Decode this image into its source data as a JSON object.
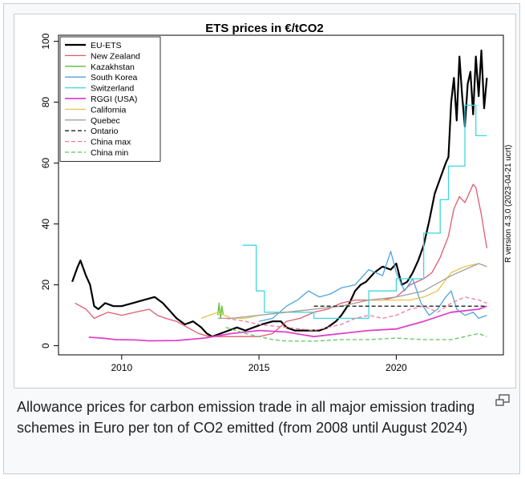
{
  "figure": {
    "caption": "Allowance prices for carbon emission trade in all major emission trading schemes in Euro per ton of CO2 emitted (from 2008 until August 2024)",
    "enlarge_icon": "magnify-clip-icon"
  },
  "chart_data": {
    "type": "line",
    "title": "ETS prices in €/tCO2",
    "side_note": "R version 4.3.0 (2023-04-21 ucrt)",
    "xlabel": "",
    "ylabel": "",
    "xlim": [
      2007.7,
      2023.9
    ],
    "ylim": [
      -3,
      102
    ],
    "xticks": [
      2010,
      2015,
      2020
    ],
    "yticks": [
      0,
      20,
      40,
      60,
      80,
      100
    ],
    "grid": false,
    "legend_position": "top-left",
    "series": [
      {
        "name": "EU-ETS",
        "color": "#000000",
        "dash": "solid",
        "width": 2.2,
        "x": [
          2008.2,
          2008.4,
          2008.5,
          2008.7,
          2008.85,
          2009.0,
          2009.15,
          2009.4,
          2009.7,
          2010.0,
          2010.4,
          2010.8,
          2011.2,
          2011.5,
          2011.8,
          2012.0,
          2012.3,
          2012.6,
          2012.9,
          2013.1,
          2013.3,
          2013.6,
          2013.9,
          2014.2,
          2014.5,
          2014.8,
          2015.1,
          2015.5,
          2015.8,
          2016.0,
          2016.3,
          2016.6,
          2016.9,
          2017.2,
          2017.5,
          2017.8,
          2018.0,
          2018.3,
          2018.5,
          2018.7,
          2018.9,
          2019.2,
          2019.5,
          2019.8,
          2020.0,
          2020.2,
          2020.4,
          2020.6,
          2020.8,
          2021.0,
          2021.2,
          2021.4,
          2021.6,
          2021.8,
          2021.9,
          2022.0,
          2022.1,
          2022.2,
          2022.3,
          2022.4,
          2022.5,
          2022.6,
          2022.7,
          2022.8,
          2022.9,
          2023.0,
          2023.1,
          2023.2,
          2023.3
        ],
        "y": [
          21,
          26,
          28,
          23,
          20,
          13,
          12,
          14,
          13,
          13,
          14,
          15,
          16,
          14,
          11,
          9,
          7,
          8,
          6,
          4,
          3,
          4,
          5,
          6,
          5,
          6,
          7,
          8,
          8,
          6,
          5,
          5,
          5,
          5,
          6,
          8,
          10,
          14,
          18,
          20,
          21,
          24,
          26,
          25,
          27,
          20,
          21,
          24,
          28,
          33,
          41,
          50,
          55,
          60,
          62,
          80,
          88,
          74,
          95,
          82,
          72,
          86,
          90,
          76,
          95,
          82,
          97,
          78,
          88
        ]
      },
      {
        "name": "New Zealand",
        "color": "#e05a6e",
        "dash": "solid",
        "width": 1.3,
        "x": [
          2008.3,
          2008.7,
          2009.0,
          2009.5,
          2010.0,
          2010.5,
          2011.0,
          2011.3,
          2011.6,
          2012.0,
          2012.4,
          2012.8,
          2013.2,
          2013.6,
          2014.0,
          2014.5,
          2015.0,
          2015.5,
          2016.0,
          2016.5,
          2017.0,
          2017.5,
          2018.0,
          2018.5,
          2019.0,
          2019.5,
          2020.0,
          2020.5,
          2021.0,
          2021.3,
          2021.6,
          2021.9,
          2022.1,
          2022.3,
          2022.5,
          2022.7,
          2022.8,
          2022.9,
          2023.1,
          2023.3
        ],
        "y": [
          14,
          12,
          9,
          11,
          10,
          11,
          12,
          10,
          9,
          8,
          6,
          4,
          3,
          3,
          3,
          3,
          3,
          4,
          8,
          9,
          11,
          12,
          14,
          15,
          15,
          15,
          16,
          20,
          22,
          24,
          29,
          36,
          45,
          49,
          47,
          51,
          53,
          52,
          43,
          32
        ]
      },
      {
        "name": "Kazakhstan",
        "color": "#6cc24a",
        "dash": "solid",
        "width": 1.5,
        "x": [
          2013.5,
          2013.55,
          2013.6,
          2013.65,
          2013.7
        ],
        "y": [
          10,
          14,
          9,
          13,
          10
        ]
      },
      {
        "name": "South Korea",
        "color": "#4fa3e0",
        "dash": "solid",
        "width": 1.3,
        "x": [
          2015.0,
          2015.5,
          2016.0,
          2016.4,
          2016.8,
          2017.2,
          2017.6,
          2018.0,
          2018.5,
          2019.0,
          2019.5,
          2019.8,
          2020.0,
          2020.3,
          2020.6,
          2020.9,
          2021.2,
          2021.5,
          2021.8,
          2022.0,
          2022.2,
          2022.5,
          2022.8,
          2023.0,
          2023.3
        ],
        "y": [
          8,
          9,
          13,
          15,
          18,
          16,
          17,
          19,
          20,
          25,
          23,
          31,
          24,
          18,
          22,
          14,
          10,
          12,
          16,
          18,
          12,
          10,
          11,
          9,
          10
        ]
      },
      {
        "name": "Switzerland",
        "color": "#3fd7e0",
        "dash": "solid",
        "width": 1.3,
        "x": [
          2014.4,
          2014.9,
          2014.9,
          2015.2,
          2015.2,
          2017.0,
          2017.0,
          2019.0,
          2019.0,
          2020.0,
          2020.0,
          2021.0,
          2021.0,
          2021.6,
          2021.6,
          2021.9,
          2021.9,
          2022.5,
          2022.5,
          2022.9,
          2022.9,
          2023.3
        ],
        "y": [
          33,
          33,
          18,
          18,
          11,
          11,
          9,
          9,
          18,
          18,
          22,
          22,
          37,
          37,
          48,
          48,
          59,
          59,
          79,
          79,
          69,
          69
        ]
      },
      {
        "name": "RGGI (USA)",
        "color": "#e040c8",
        "dash": "solid",
        "width": 1.8,
        "x": [
          2008.8,
          2009.3,
          2009.8,
          2010.5,
          2011.0,
          2012.0,
          2013.0,
          2014.0,
          2015.0,
          2016.0,
          2017.0,
          2018.0,
          2019.0,
          2020.0,
          2021.0,
          2022.0,
          2023.0,
          2023.3
        ],
        "y": [
          2.8,
          2.5,
          2.0,
          1.9,
          1.6,
          1.7,
          2.5,
          4,
          5,
          4.5,
          3,
          4,
          5,
          5.5,
          8,
          11,
          12,
          13
        ]
      },
      {
        "name": "California",
        "color": "#e6c44a",
        "dash": "solid",
        "width": 1.3,
        "x": [
          2012.9,
          2013.2,
          2013.5,
          2014.0,
          2014.5,
          2015.0,
          2016.0,
          2017.0,
          2018.0,
          2019.0,
          2020.0,
          2020.5,
          2021.0,
          2021.5,
          2022.0,
          2022.5,
          2023.0,
          2023.3
        ],
        "y": [
          9,
          10,
          11,
          9,
          9,
          10,
          11,
          12,
          13,
          15,
          15,
          15,
          16,
          18,
          24,
          26,
          27,
          26
        ]
      },
      {
        "name": "Quebec",
        "color": "#a0a0a0",
        "dash": "solid",
        "width": 1.3,
        "x": [
          2013.5,
          2014.0,
          2015.0,
          2016.0,
          2017.0,
          2018.0,
          2019.0,
          2020.0,
          2021.0,
          2022.0,
          2023.0,
          2023.3
        ],
        "y": [
          9,
          9,
          10,
          11,
          12,
          13,
          15,
          16,
          18,
          23,
          27,
          26
        ]
      },
      {
        "name": "Ontario",
        "color": "#333333",
        "dash": "dashed",
        "width": 1.5,
        "x": [
          2017.0,
          2023.3
        ],
        "y": [
          13,
          13
        ]
      },
      {
        "name": "China max",
        "color": "#f07a9a",
        "dash": "dashed",
        "width": 1.3,
        "x": [
          2013.8,
          2014.5,
          2015.0,
          2016.0,
          2017.0,
          2018.0,
          2018.5,
          2019.0,
          2019.5,
          2020.0,
          2020.5,
          2021.0,
          2021.5,
          2022.0,
          2022.5,
          2023.0,
          2023.3
        ],
        "y": [
          9,
          8,
          7,
          6,
          5,
          7,
          9,
          10,
          9,
          10,
          12,
          13,
          11,
          14,
          16,
          15,
          14
        ]
      },
      {
        "name": "China min",
        "color": "#5fc45f",
        "dash": "dashed",
        "width": 1.3,
        "x": [
          2013.8,
          2014.5,
          2015.0,
          2015.5,
          2016.0,
          2017.0,
          2018.0,
          2019.0,
          2020.0,
          2021.0,
          2022.0,
          2022.5,
          2023.0,
          2023.3
        ],
        "y": [
          6,
          4,
          3,
          2,
          1.5,
          1.5,
          2,
          2,
          2.5,
          2,
          2,
          3,
          4,
          3
        ]
      }
    ]
  }
}
